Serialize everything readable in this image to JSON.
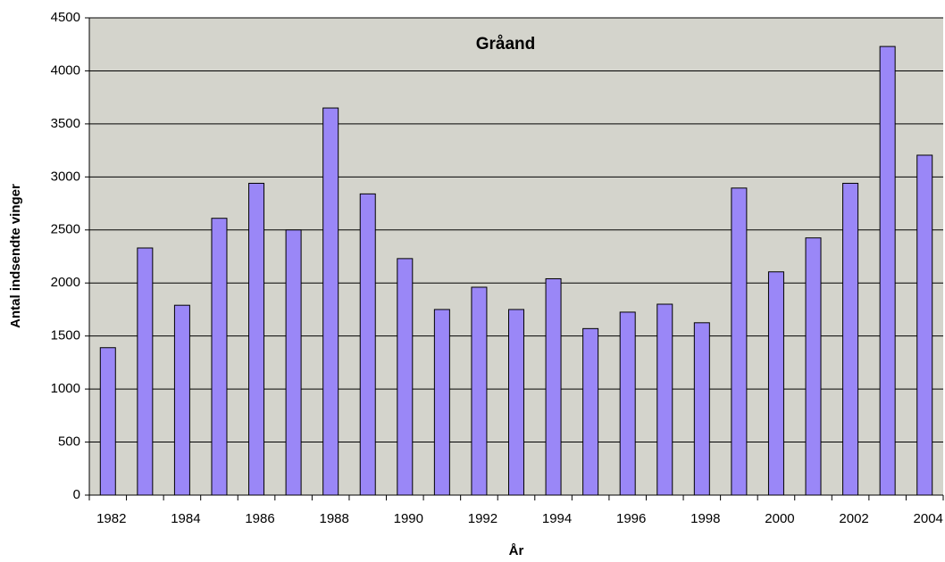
{
  "chart_data": {
    "type": "bar",
    "title": "Gråand",
    "xlabel": "År",
    "ylabel": "Antal indsendte vinger",
    "categories": [
      "1982",
      null,
      "1984",
      null,
      "1986",
      null,
      "1988",
      null,
      "1990",
      null,
      "1992",
      null,
      "1994",
      null,
      "1996",
      null,
      "1998",
      null,
      "2000",
      null,
      "2002",
      null,
      "2004"
    ],
    "values": [
      1390,
      2330,
      1790,
      2610,
      2940,
      2500,
      3650,
      2840,
      2230,
      1750,
      1960,
      1750,
      2040,
      1570,
      1725,
      1800,
      1625,
      2895,
      2105,
      2425,
      2940,
      4230,
      3205
    ],
    "color": "#9a87f7",
    "ylim": [
      0,
      4500
    ],
    "yticks": [
      0,
      500,
      1000,
      1500,
      2000,
      2500,
      3000,
      3500,
      4000,
      4500
    ],
    "grid": true
  }
}
